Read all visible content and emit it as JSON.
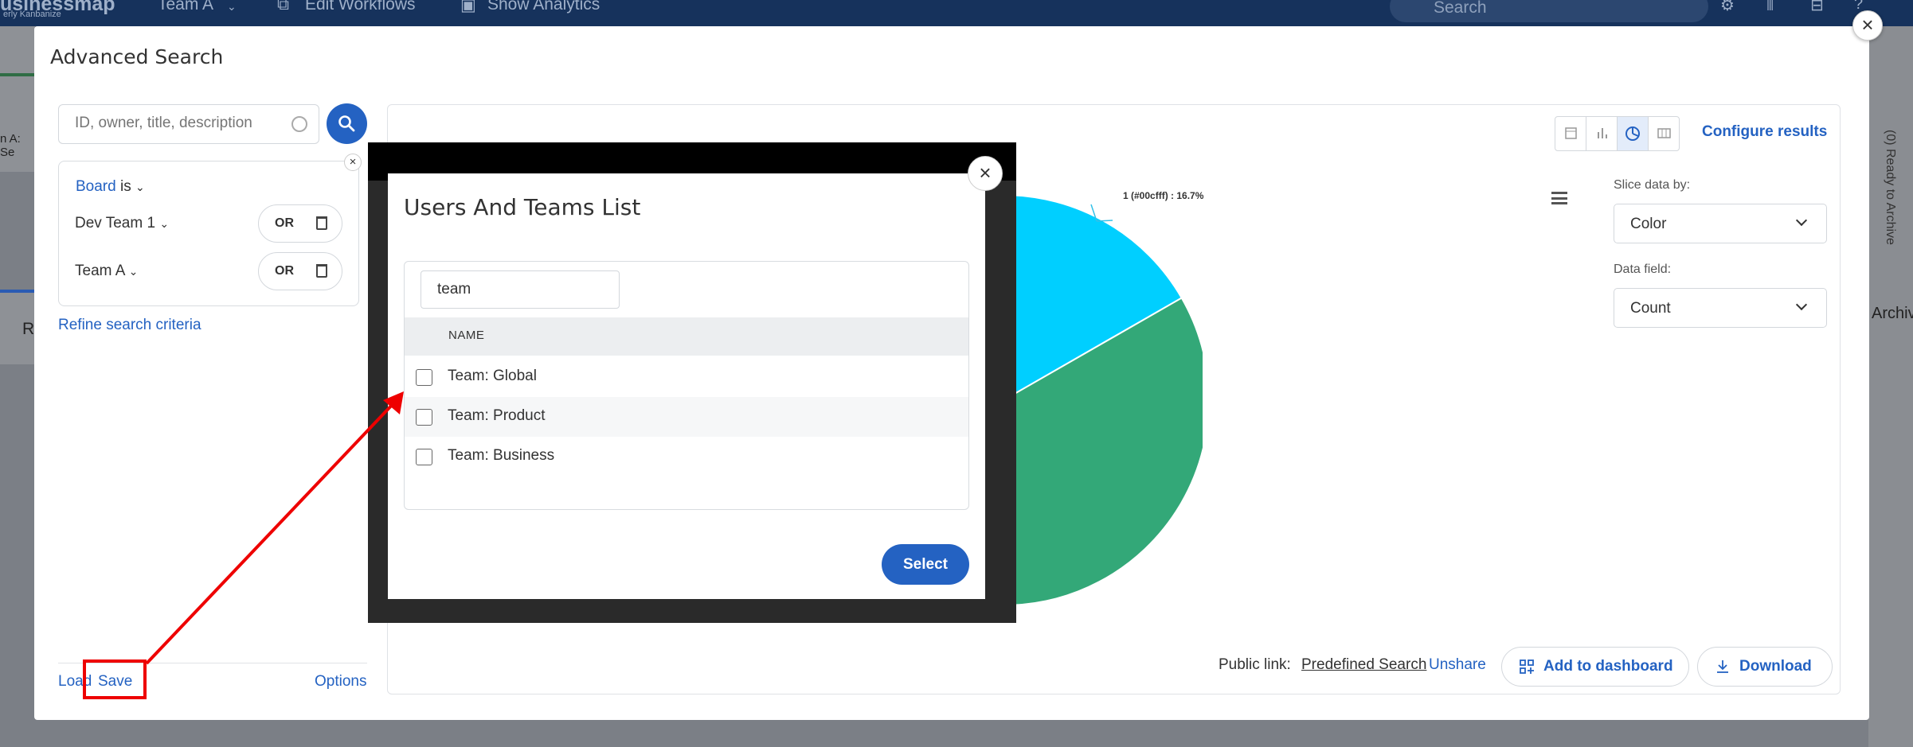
{
  "background": {
    "app_logo": "usinessmap",
    "app_logo_sub": "erly Kanbanize",
    "board_switcher": "Team A",
    "edit_workflows": "Edit Workflows",
    "show_analytics": "Show Analytics",
    "search_placeholder": "Search",
    "left_fragment": "n A: Se",
    "left_fragment_2": "R",
    "right_fragment": "(0) Ready to Archive",
    "right_fragment_2": "Archive"
  },
  "modal": {
    "title": "Advanced Search",
    "search_placeholder": "ID, owner, title, description",
    "criteria": {
      "board_label": "Board",
      "board_op": "is",
      "values": [
        {
          "label": "Dev Team 1",
          "or": "OR"
        },
        {
          "label": "Team A",
          "or": "OR"
        }
      ]
    },
    "refine": "Refine search criteria",
    "load": "Load",
    "save": "Save",
    "options": "Options"
  },
  "results": {
    "configure": "Configure results",
    "slice_label": "Slice data by:",
    "slice_value": "Color",
    "field_label": "Data field:",
    "field_value": "Count",
    "public_link_label": "Public link:",
    "predefined": "Predefined Search",
    "unshare": "Unshare",
    "add_dashboard": "Add to dashboard",
    "download": "Download"
  },
  "chart_data": {
    "type": "pie",
    "slices": [
      {
        "label": "1 (#00cfff) : 16.7%",
        "value": 16.7,
        "color": "#00cfff"
      },
      {
        "label": "",
        "value": 33.3,
        "color": "#33a878"
      }
    ]
  },
  "dialog": {
    "title": "Users And Teams List",
    "filter_value": "team",
    "column_header": "NAME",
    "rows": [
      "Team: Global",
      "Team: Product",
      "Team: Business"
    ],
    "select": "Select"
  }
}
